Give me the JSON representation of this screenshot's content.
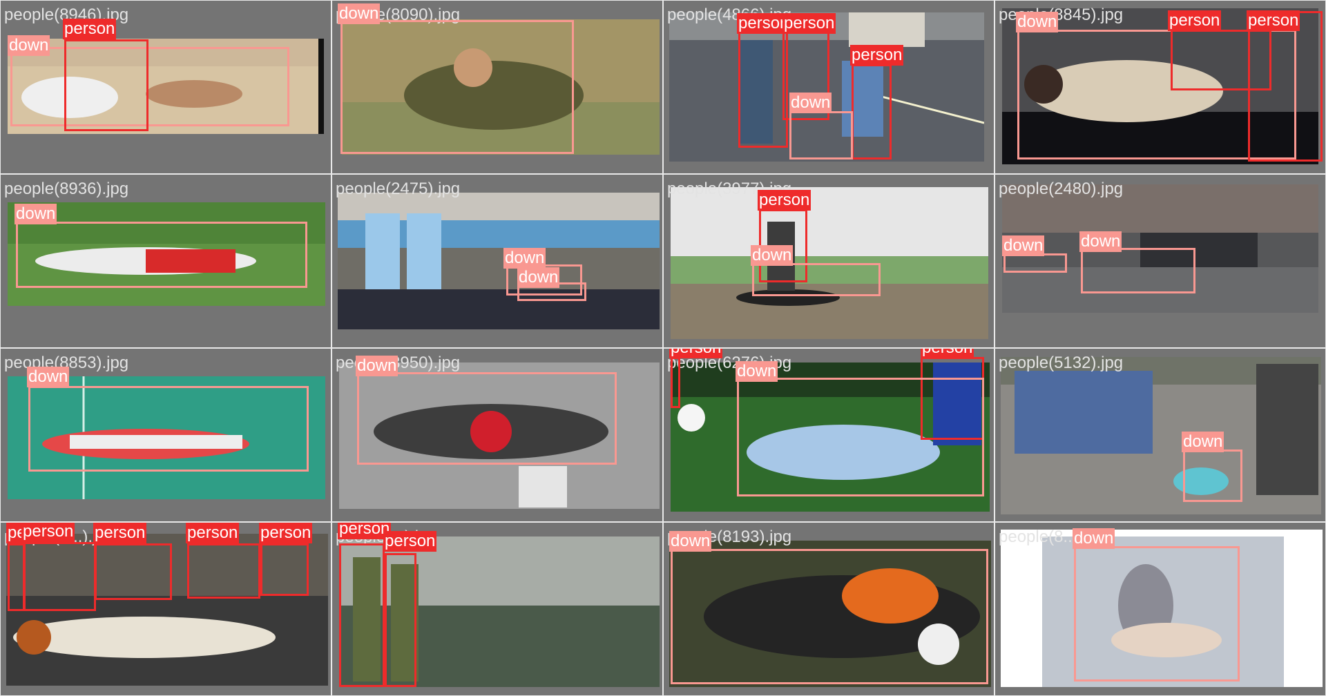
{
  "colors": {
    "down": "#f99891",
    "person": "#ee2b2b",
    "cell_bg": "#747474"
  },
  "cells": [
    {
      "file": "people(8946).jpg",
      "labels": [
        "down",
        "person"
      ]
    },
    {
      "file": "people(8090).jpg",
      "labels": [
        "down"
      ]
    },
    {
      "file": "people(4866).jpg",
      "labels": [
        "person",
        "person",
        "person",
        "down"
      ]
    },
    {
      "file": "people(8845).jpg",
      "labels": [
        "down",
        "person",
        "person"
      ]
    },
    {
      "file": "people(8936).jpg",
      "labels": [
        "down"
      ]
    },
    {
      "file": "people(2475).jpg",
      "labels": [
        "down",
        "down"
      ]
    },
    {
      "file": "people(3977).jpg",
      "labels": [
        "person",
        "down"
      ]
    },
    {
      "file": "people(2480).jpg",
      "labels": [
        "down",
        "down"
      ]
    },
    {
      "file": "people(8853).jpg",
      "labels": [
        "down"
      ]
    },
    {
      "file": "people(3950).jpg",
      "labels": [
        "down"
      ]
    },
    {
      "file": "people(6276).jpg",
      "labels": [
        "person",
        "person",
        "down"
      ]
    },
    {
      "file": "people(5132).jpg",
      "labels": [
        "down"
      ]
    },
    {
      "file": "people(8...).jpg",
      "labels": [
        "person",
        "person",
        "person",
        "person",
        "person"
      ]
    },
    {
      "file": "people(...).jpg",
      "labels": [
        "person",
        "person"
      ]
    },
    {
      "file": "people(8193).jpg",
      "labels": [
        "down"
      ]
    },
    {
      "file": "people(8...).jpg",
      "labels": [
        "down"
      ]
    }
  ]
}
